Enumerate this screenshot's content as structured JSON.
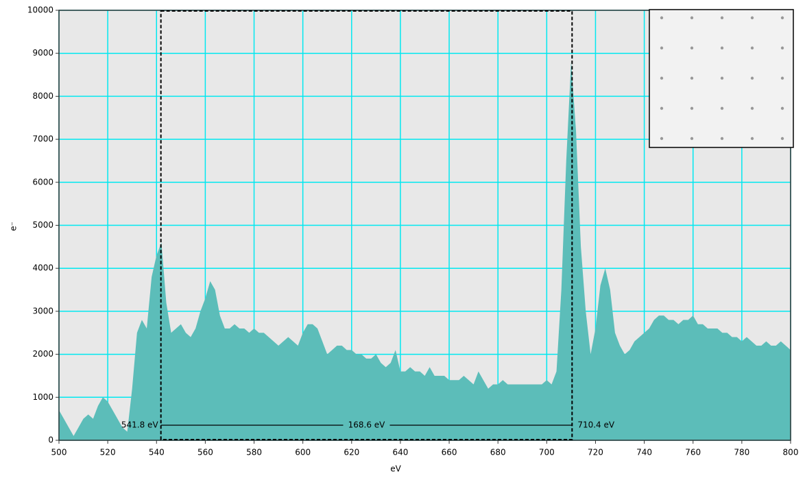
{
  "chart_data": {
    "type": "area",
    "x": [
      500,
      502,
      504,
      506,
      508,
      510,
      512,
      514,
      516,
      518,
      520,
      522,
      524,
      526,
      528,
      530,
      532,
      534,
      536,
      538,
      540,
      542,
      544,
      546,
      548,
      550,
      552,
      554,
      556,
      558,
      560,
      562,
      564,
      566,
      568,
      570,
      572,
      574,
      576,
      578,
      580,
      582,
      584,
      586,
      588,
      590,
      592,
      594,
      596,
      598,
      600,
      602,
      604,
      606,
      608,
      610,
      612,
      614,
      616,
      618,
      620,
      622,
      624,
      626,
      628,
      630,
      632,
      634,
      636,
      638,
      640,
      642,
      644,
      646,
      648,
      650,
      652,
      654,
      656,
      658,
      660,
      662,
      664,
      666,
      668,
      670,
      672,
      674,
      676,
      678,
      680,
      682,
      684,
      686,
      688,
      690,
      692,
      694,
      696,
      698,
      700,
      702,
      704,
      706,
      708,
      710,
      712,
      714,
      716,
      718,
      720,
      722,
      724,
      726,
      728,
      730,
      732,
      734,
      736,
      738,
      740,
      742,
      744,
      746,
      748,
      750,
      752,
      754,
      756,
      758,
      760,
      762,
      764,
      766,
      768,
      770,
      772,
      774,
      776,
      778,
      780,
      782,
      784,
      786,
      788,
      790,
      792,
      794,
      796,
      798,
      800
    ],
    "values": [
      700,
      500,
      300,
      100,
      300,
      500,
      600,
      500,
      800,
      1000,
      900,
      700,
      500,
      300,
      200,
      1200,
      2500,
      2800,
      2600,
      3800,
      4300,
      4600,
      3200,
      2500,
      2600,
      2700,
      2500,
      2400,
      2600,
      3000,
      3300,
      3700,
      3500,
      2900,
      2600,
      2600,
      2700,
      2600,
      2600,
      2500,
      2600,
      2500,
      2500,
      2400,
      2300,
      2200,
      2300,
      2400,
      2300,
      2200,
      2500,
      2700,
      2700,
      2600,
      2300,
      2000,
      2100,
      2200,
      2200,
      2100,
      2100,
      2000,
      2000,
      1900,
      1900,
      2000,
      1800,
      1700,
      1800,
      2100,
      1600,
      1600,
      1700,
      1600,
      1600,
      1500,
      1700,
      1500,
      1500,
      1500,
      1400,
      1400,
      1400,
      1500,
      1400,
      1300,
      1600,
      1400,
      1200,
      1300,
      1300,
      1400,
      1300,
      1300,
      1300,
      1300,
      1300,
      1300,
      1300,
      1300,
      1400,
      1300,
      1600,
      3500,
      6500,
      8800,
      7200,
      4500,
      3000,
      2000,
      2600,
      3600,
      4000,
      3500,
      2500,
      2200,
      2000,
      2100,
      2300,
      2400,
      2500,
      2600,
      2800,
      2900,
      2900,
      2800,
      2800,
      2700,
      2800,
      2800,
      2900,
      2700,
      2700,
      2600,
      2600,
      2600,
      2500,
      2500,
      2400,
      2400,
      2300,
      2400,
      2300,
      2200,
      2200,
      2300,
      2200,
      2200,
      2300,
      2200,
      2100
    ],
    "color": "#5cbdb9",
    "x_label": "eV",
    "y_label": "e⁻",
    "xlim": [
      500,
      800
    ],
    "xticks": [
      500,
      520,
      540,
      560,
      580,
      600,
      620,
      640,
      660,
      680,
      700,
      720,
      740,
      760,
      780,
      800
    ],
    "ylim": [
      0,
      10000
    ],
    "yticks": [
      0,
      1000,
      2000,
      3000,
      4000,
      5000,
      6000,
      7000,
      8000,
      9000,
      10000
    ],
    "grid": true,
    "grid_color": "#00e8f0",
    "selection": {
      "start": 541.8,
      "end": 710.4,
      "width": 168.6,
      "start_label": "541.8 eV",
      "end_label": "710.4 eV",
      "width_label": "168.6 eV"
    }
  }
}
